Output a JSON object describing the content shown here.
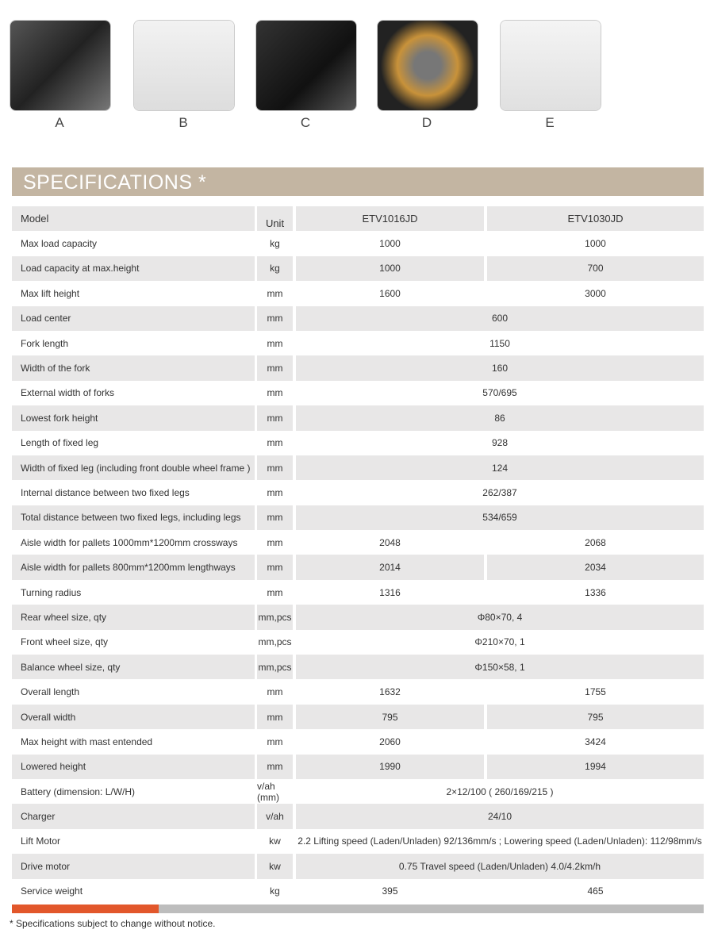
{
  "thumbnails": [
    {
      "label": "A"
    },
    {
      "label": "B"
    },
    {
      "label": "C"
    },
    {
      "label": "D"
    },
    {
      "label": "E"
    }
  ],
  "title": "SPECIFICATIONS *",
  "header": {
    "label": "Model",
    "unit": "Unit",
    "models": [
      "ETV1016JD",
      "ETV1030JD"
    ]
  },
  "rows": [
    {
      "label": "Max load capacity",
      "unit": "kg",
      "values": [
        "1000",
        "1000"
      ]
    },
    {
      "label": "Load capacity at max.height",
      "unit": "kg",
      "values": [
        "1000",
        "700"
      ]
    },
    {
      "label": "Max lift height",
      "unit": "mm",
      "values": [
        "1600",
        "3000"
      ]
    },
    {
      "label": "Load center",
      "unit": "mm",
      "span": "600"
    },
    {
      "label": "Fork length",
      "unit": "mm",
      "span": "1150"
    },
    {
      "label": "Width of the fork",
      "unit": "mm",
      "span": "160"
    },
    {
      "label": "External width of forks",
      "unit": "mm",
      "span": "570/695"
    },
    {
      "label": "Lowest fork height",
      "unit": "mm",
      "span": "86"
    },
    {
      "label": "Length of fixed leg",
      "unit": "mm",
      "span": "928"
    },
    {
      "label": "Width of fixed leg (including front double wheel frame )",
      "unit": "mm",
      "span": "124"
    },
    {
      "label": "Internal distance between two fixed legs",
      "unit": "mm",
      "span": "262/387"
    },
    {
      "label": "Total distance between two fixed legs, including legs",
      "unit": "mm",
      "span": "534/659"
    },
    {
      "label": "Aisle width for pallets 1000mm*1200mm crossways",
      "unit": "mm",
      "values": [
        "2048",
        "2068"
      ]
    },
    {
      "label": "Aisle width for pallets 800mm*1200mm lengthways",
      "unit": "mm",
      "values": [
        "2014",
        "2034"
      ]
    },
    {
      "label": "Turning radius",
      "unit": "mm",
      "values": [
        "1316",
        "1336"
      ]
    },
    {
      "label": "Rear wheel size, qty",
      "unit": "mm,pcs",
      "span": "Φ80×70, 4"
    },
    {
      "label": "Front wheel size, qty",
      "unit": "mm,pcs",
      "span": "Φ210×70, 1"
    },
    {
      "label": "Balance wheel size, qty",
      "unit": "mm,pcs",
      "span": "Φ150×58, 1"
    },
    {
      "label": "Overall length",
      "unit": "mm",
      "values": [
        "1632",
        "1755"
      ]
    },
    {
      "label": "Overall width",
      "unit": "mm",
      "values": [
        "795",
        "795"
      ]
    },
    {
      "label": "Max height with mast entended",
      "unit": "mm",
      "values": [
        "2060",
        "3424"
      ]
    },
    {
      "label": "Lowered height",
      "unit": "mm",
      "values": [
        "1990",
        "1994"
      ]
    },
    {
      "label": "Battery (dimension: L/W/H)",
      "unit": "v/ah (mm)",
      "span": "2×12/100 ( 260/169/215 )"
    },
    {
      "label": "Charger",
      "unit": "v/ah",
      "span": "24/10"
    },
    {
      "label": "Lift Motor",
      "unit": "kw",
      "span": "2.2   Lifting speed (Laden/Unladen) 92/136mm/s ; Lowering speed (Laden/Unladen): 112/98mm/s"
    },
    {
      "label": "Drive motor",
      "unit": "kw",
      "span": "0.75     Travel speed (Laden/Unladen) 4.0/4.2km/h"
    },
    {
      "label": "Service weight",
      "unit": "kg",
      "values": [
        "395",
        "465"
      ]
    }
  ],
  "footnote": "* Specifications subject to change without notice.",
  "colors": {
    "banner": "#c3b5a2",
    "accent": "#e2572b",
    "row_gray": "#e8e7e7"
  }
}
